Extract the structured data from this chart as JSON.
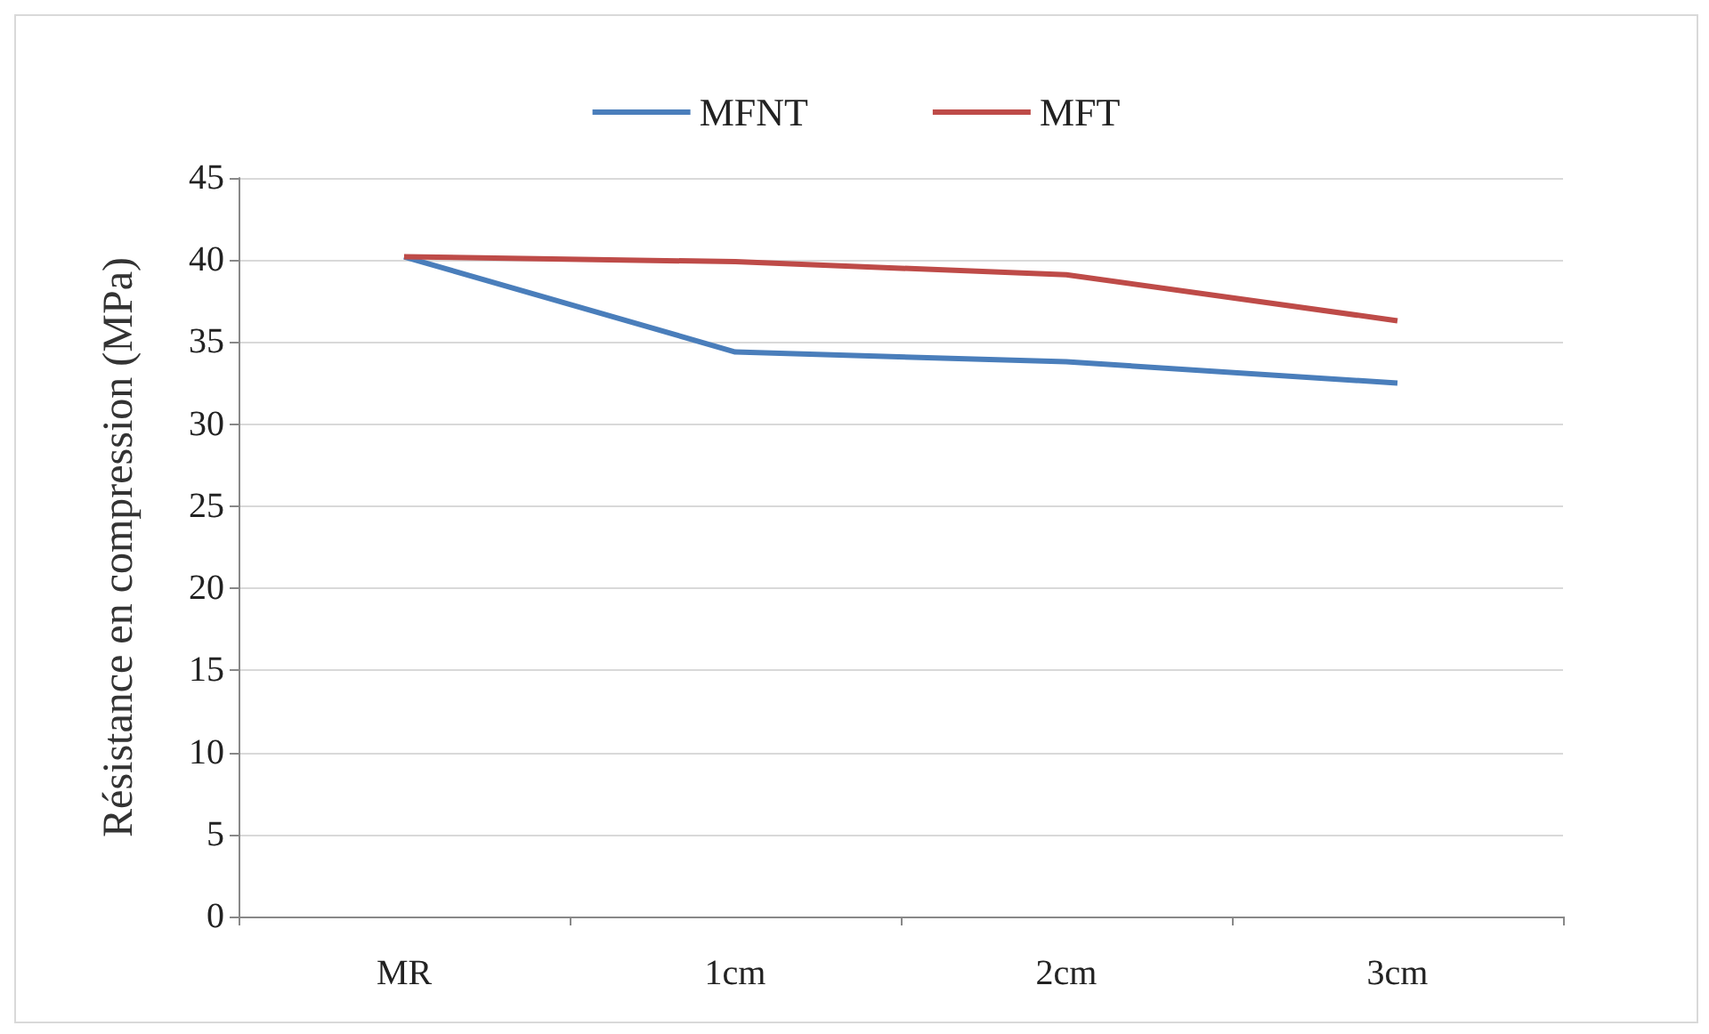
{
  "chart_data": {
    "type": "line",
    "ylabel": "Résistance en compression (MPa)",
    "categories": [
      "MR",
      "1cm",
      "2cm",
      "3cm"
    ],
    "series": [
      {
        "name": "MFNT",
        "color": "#4a7ebb",
        "values": [
          40.2,
          34.4,
          33.8,
          32.5
        ]
      },
      {
        "name": "MFT",
        "color": "#be4b48",
        "values": [
          40.2,
          39.9,
          39.1,
          36.3
        ]
      }
    ],
    "ylim": [
      0,
      45
    ],
    "yticks": [
      0,
      5,
      10,
      15,
      20,
      25,
      30,
      35,
      40,
      45
    ],
    "grid": "y",
    "legend": "top",
    "marker": "none",
    "line_style": "solid"
  }
}
